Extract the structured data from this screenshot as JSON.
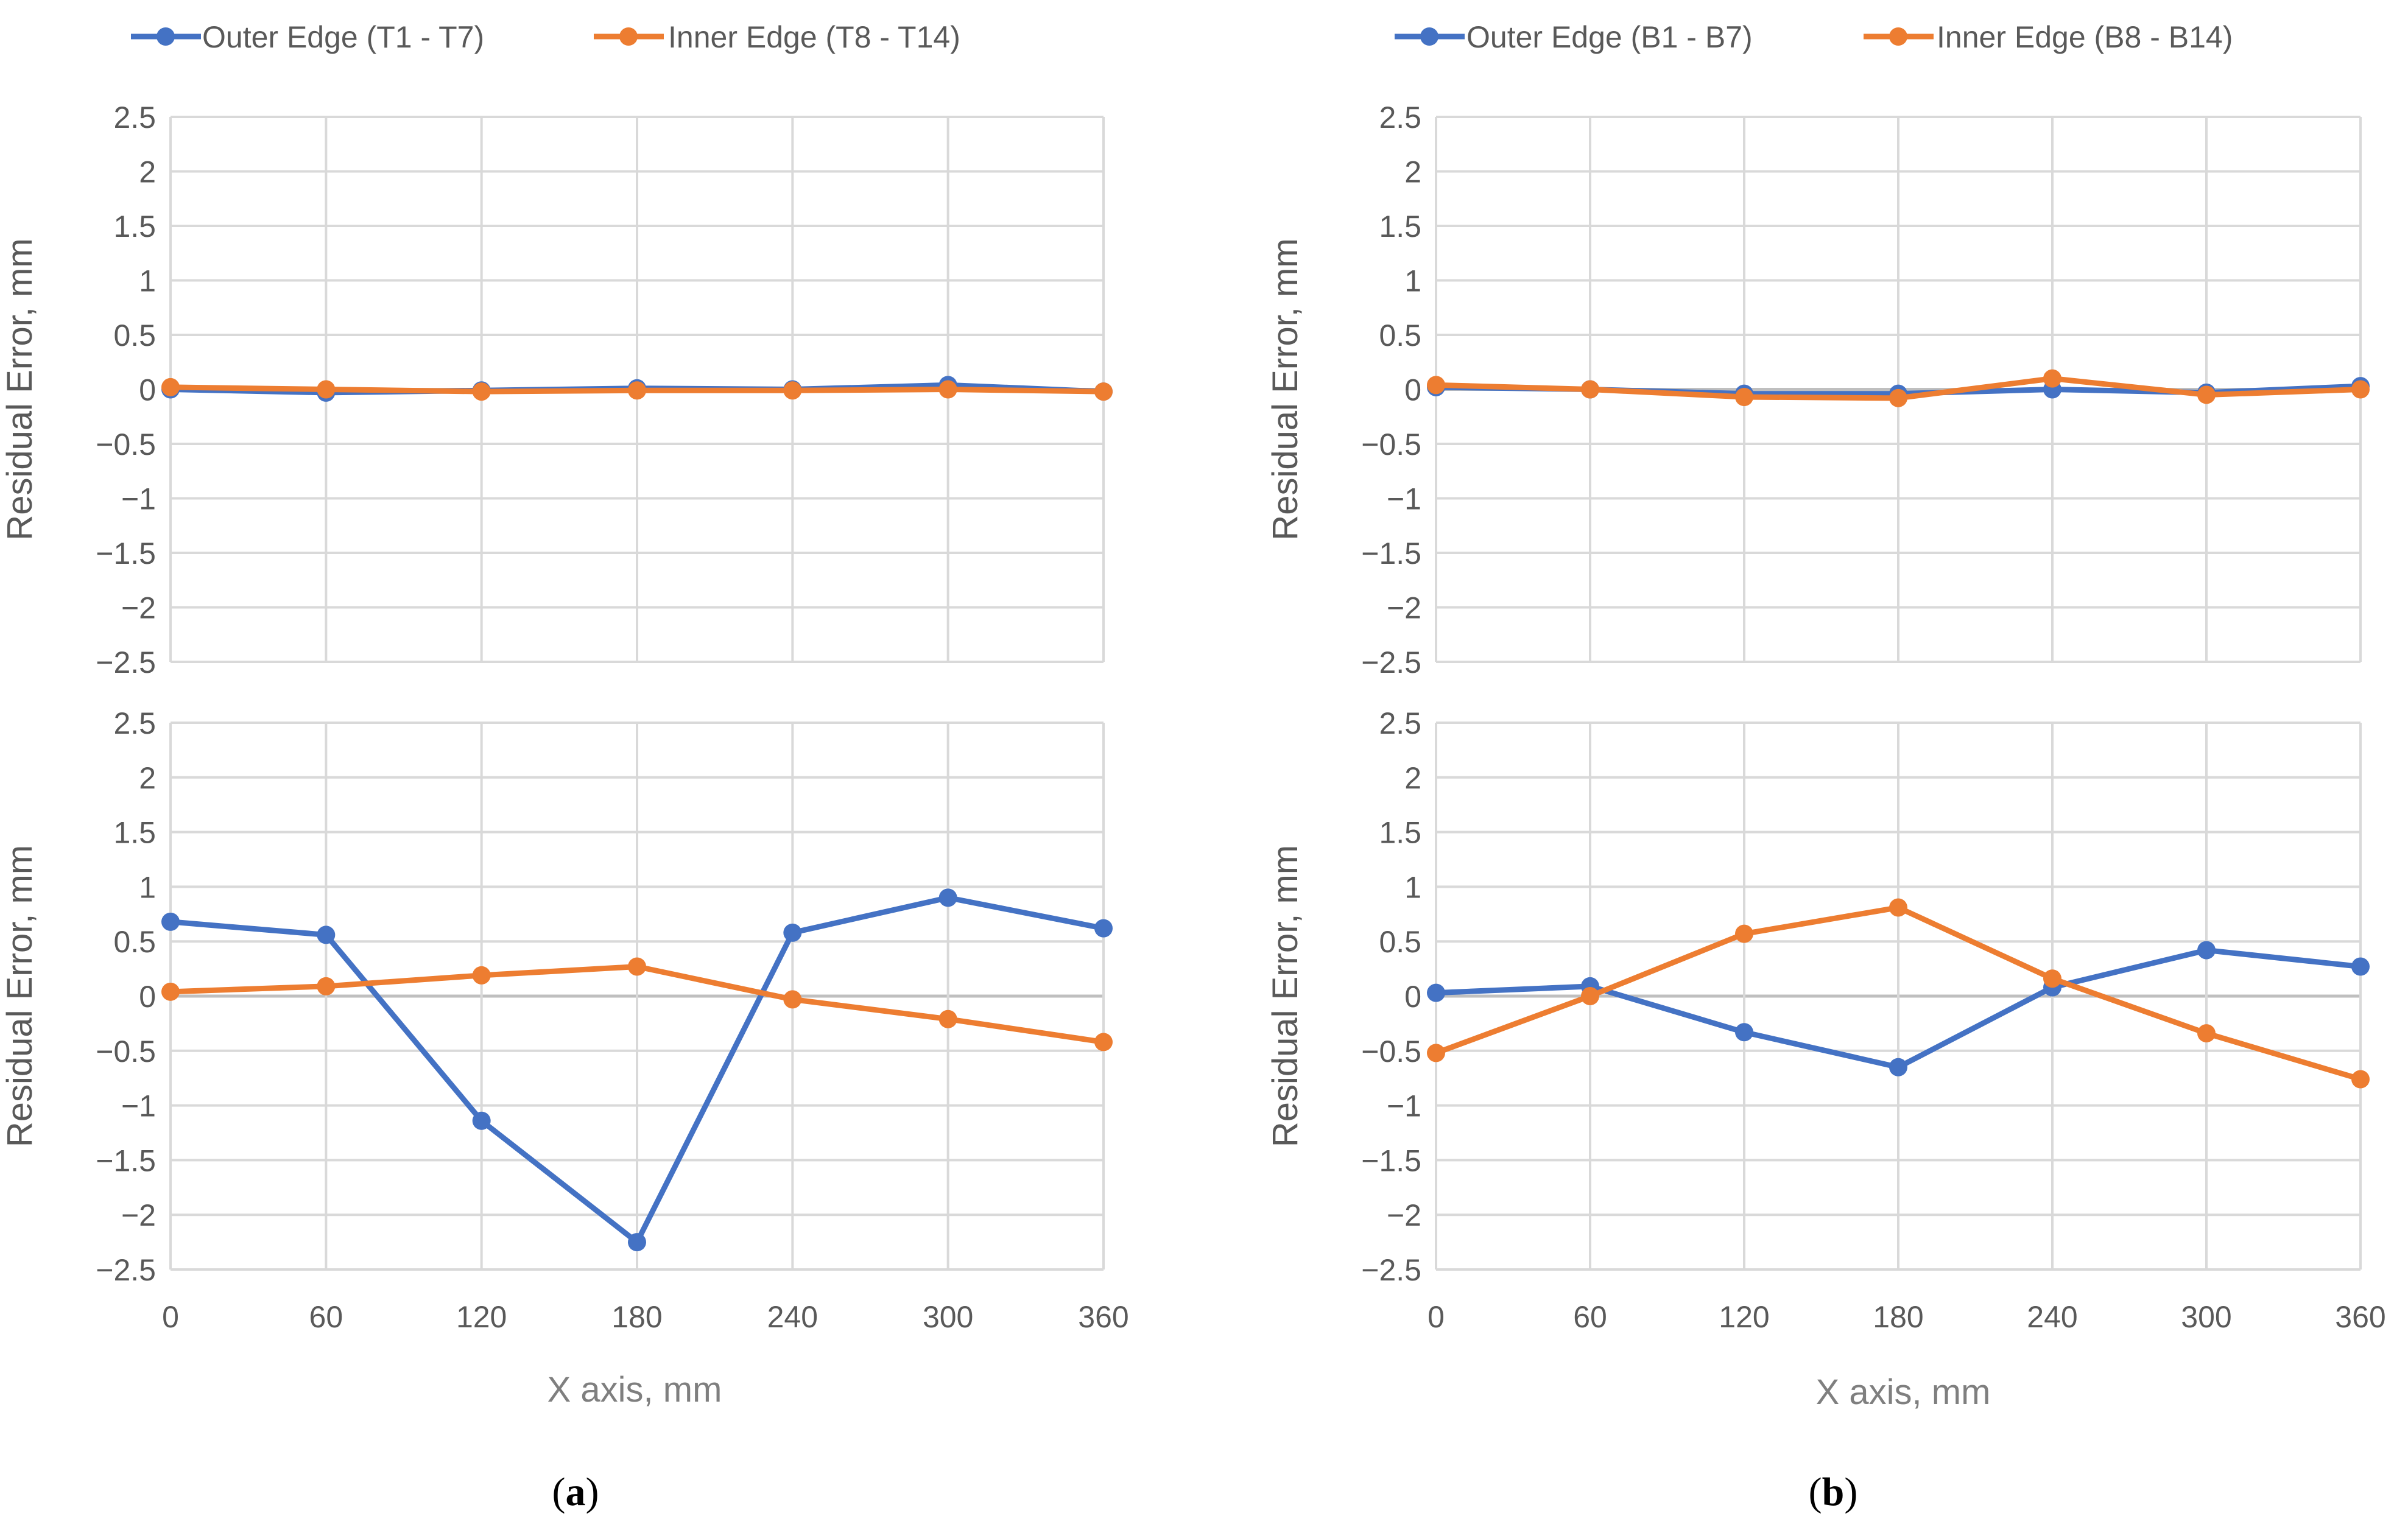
{
  "colors": {
    "outer": "#4472C4",
    "inner": "#ED7D31",
    "grid": "#D9D9D9",
    "zero": "#BFBFBF",
    "text": "#595959"
  },
  "panels": [
    {
      "caption_prefix": "(",
      "caption_letter": "a",
      "caption_suffix": ")",
      "xlabel": "X axis, mm",
      "legend": [
        "Outer Edge (T1 - T7)",
        "Inner Edge (T8 - T14)"
      ]
    },
    {
      "caption_prefix": "(",
      "caption_letter": "b",
      "caption_suffix": ")",
      "xlabel": "X axis, mm",
      "legend": [
        "Outer Edge (B1 - B7)",
        "Inner Edge (B8 - B14)"
      ]
    }
  ],
  "chart_data": [
    {
      "type": "line",
      "panel": "a",
      "position": "top",
      "x": [
        0,
        60,
        120,
        180,
        240,
        300,
        360
      ],
      "xlabel": "",
      "ylabel": "Residual Error, mm",
      "ylim": [
        -2.5,
        2.5
      ],
      "yticks": [
        "2.5",
        "2",
        "1.5",
        "1",
        "0.5",
        "0",
        "−0.5",
        "−1",
        "−1.5",
        "−2",
        "−2.5"
      ],
      "xticks": [],
      "series": [
        {
          "name": "Outer Edge (T1 - T7)",
          "values": [
            0.0,
            -0.03,
            -0.01,
            0.01,
            0.0,
            0.04,
            -0.02
          ]
        },
        {
          "name": "Inner Edge (T8 - T14)",
          "values": [
            0.02,
            0.0,
            -0.02,
            -0.01,
            -0.01,
            0.0,
            -0.02
          ]
        }
      ]
    },
    {
      "type": "line",
      "panel": "a",
      "position": "bottom",
      "x": [
        0,
        60,
        120,
        180,
        240,
        300,
        360
      ],
      "xlabel": "X axis, mm",
      "ylabel": "Residual Error, mm",
      "ylim": [
        -2.5,
        2.5
      ],
      "yticks": [
        "2.5",
        "2",
        "1.5",
        "1",
        "0.5",
        "0",
        "−0.5",
        "−1",
        "−1.5",
        "−2",
        "−2.5"
      ],
      "xticks": [
        "0",
        "60",
        "120",
        "180",
        "240",
        "300",
        "360"
      ],
      "series": [
        {
          "name": "Outer Edge (T1 - T7)",
          "values": [
            0.68,
            0.56,
            -1.14,
            -2.25,
            0.58,
            0.9,
            0.62
          ]
        },
        {
          "name": "Inner Edge (T8 - T14)",
          "values": [
            0.04,
            0.09,
            0.19,
            0.27,
            -0.03,
            -0.21,
            -0.42
          ]
        }
      ]
    },
    {
      "type": "line",
      "panel": "b",
      "position": "top",
      "x": [
        0,
        60,
        120,
        180,
        240,
        300,
        360
      ],
      "xlabel": "",
      "ylabel": "Residual Error, mm",
      "ylim": [
        -2.5,
        2.5
      ],
      "yticks": [
        "2.5",
        "2",
        "1.5",
        "1",
        "0.5",
        "0",
        "−0.5",
        "−1",
        "−1.5",
        "−2",
        "−2.5"
      ],
      "xticks": [],
      "series": [
        {
          "name": "Outer Edge (B1 - B7)",
          "values": [
            0.02,
            0.0,
            -0.04,
            -0.04,
            0.0,
            -0.03,
            0.03
          ]
        },
        {
          "name": "Inner Edge (B8 - B14)",
          "values": [
            0.04,
            0.0,
            -0.07,
            -0.08,
            0.1,
            -0.05,
            0.0
          ]
        }
      ]
    },
    {
      "type": "line",
      "panel": "b",
      "position": "bottom",
      "x": [
        0,
        60,
        120,
        180,
        240,
        300,
        360
      ],
      "xlabel": "X axis, mm",
      "ylabel": "Residual Error, mm",
      "ylim": [
        -2.5,
        2.5
      ],
      "yticks": [
        "2.5",
        "2",
        "1.5",
        "1",
        "0.5",
        "0",
        "−0.5",
        "−1",
        "−1.5",
        "−2",
        "−2.5"
      ],
      "xticks": [
        "0",
        "60",
        "120",
        "180",
        "240",
        "300",
        "360"
      ],
      "series": [
        {
          "name": "Outer Edge (B1 - B7)",
          "values": [
            0.03,
            0.09,
            -0.33,
            -0.65,
            0.08,
            0.42,
            0.27
          ]
        },
        {
          "name": "Inner Edge (B8 - B14)",
          "values": [
            -0.52,
            0.0,
            0.57,
            0.81,
            0.16,
            -0.34,
            -0.76
          ]
        }
      ]
    }
  ]
}
